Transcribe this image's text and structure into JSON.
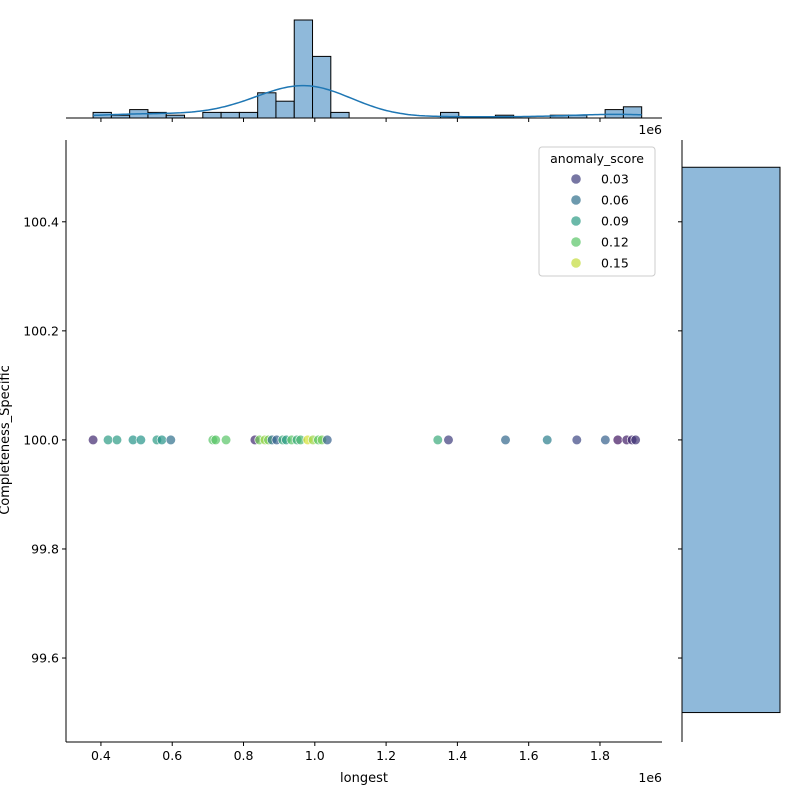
{
  "chart_data": [
    {
      "type": "scatter",
      "xlabel": "longest",
      "ylabel": "Completeness_Specific",
      "x_offset_label": "1e6",
      "xlim": [
        0.302,
        1.974
      ],
      "ylim": [
        99.446,
        100.55
      ],
      "x_ticks": [
        "0.4",
        "0.6",
        "0.8",
        "1.0",
        "1.2",
        "1.4",
        "1.6",
        "1.8"
      ],
      "y_ticks": [
        "99.6",
        "99.8",
        "100.0",
        "100.2",
        "100.4"
      ],
      "x_tick_values": [
        0.4,
        0.6,
        0.8,
        1.0,
        1.2,
        1.4,
        1.6,
        1.8
      ],
      "y_tick_values": [
        99.6,
        99.8,
        100.0,
        100.2,
        100.4
      ],
      "grid": false,
      "hue": "anomaly_score",
      "colormap": "viridis",
      "hue_range": [
        0.0,
        0.165
      ],
      "legend": {
        "title": "anomaly_score",
        "placement": "top-right",
        "entries": [
          "0.03",
          "0.06",
          "0.09",
          "0.12",
          "0.15"
        ],
        "values": [
          0.03,
          0.06,
          0.09,
          0.12,
          0.15
        ]
      },
      "points": [
        {
          "x": 0.378,
          "y": 100.0,
          "score": 0.02
        },
        {
          "x": 0.42,
          "y": 100.0,
          "score": 0.09
        },
        {
          "x": 0.445,
          "y": 100.0,
          "score": 0.09
        },
        {
          "x": 0.49,
          "y": 100.0,
          "score": 0.085
        },
        {
          "x": 0.512,
          "y": 100.0,
          "score": 0.085
        },
        {
          "x": 0.557,
          "y": 100.0,
          "score": 0.09
        },
        {
          "x": 0.571,
          "y": 100.0,
          "score": 0.085
        },
        {
          "x": 0.596,
          "y": 100.0,
          "score": 0.06
        },
        {
          "x": 0.714,
          "y": 100.0,
          "score": 0.12
        },
        {
          "x": 0.722,
          "y": 100.0,
          "score": 0.12
        },
        {
          "x": 0.751,
          "y": 100.0,
          "score": 0.12
        },
        {
          "x": 0.832,
          "y": 100.0,
          "score": 0.02
        },
        {
          "x": 0.845,
          "y": 100.0,
          "score": 0.13
        },
        {
          "x": 0.86,
          "y": 100.0,
          "score": 0.14
        },
        {
          "x": 0.87,
          "y": 100.0,
          "score": 0.13
        },
        {
          "x": 0.88,
          "y": 100.0,
          "score": 0.06
        },
        {
          "x": 0.893,
          "y": 100.0,
          "score": 0.05
        },
        {
          "x": 0.91,
          "y": 100.0,
          "score": 0.1
        },
        {
          "x": 0.92,
          "y": 100.0,
          "score": 0.09
        },
        {
          "x": 0.935,
          "y": 100.0,
          "score": 0.12
        },
        {
          "x": 0.95,
          "y": 100.0,
          "score": 0.1
        },
        {
          "x": 0.96,
          "y": 100.0,
          "score": 0.11
        },
        {
          "x": 0.98,
          "y": 100.0,
          "score": 0.155
        },
        {
          "x": 0.995,
          "y": 100.0,
          "score": 0.14
        },
        {
          "x": 1.01,
          "y": 100.0,
          "score": 0.12
        },
        {
          "x": 1.02,
          "y": 100.0,
          "score": 0.13
        },
        {
          "x": 1.035,
          "y": 100.0,
          "score": 0.05
        },
        {
          "x": 1.345,
          "y": 100.0,
          "score": 0.1
        },
        {
          "x": 1.375,
          "y": 100.0,
          "score": 0.03
        },
        {
          "x": 1.535,
          "y": 100.0,
          "score": 0.055
        },
        {
          "x": 1.652,
          "y": 100.0,
          "score": 0.07
        },
        {
          "x": 1.735,
          "y": 100.0,
          "score": 0.035
        },
        {
          "x": 1.815,
          "y": 100.0,
          "score": 0.05
        },
        {
          "x": 1.85,
          "y": 100.0,
          "score": 0.01
        },
        {
          "x": 1.875,
          "y": 100.0,
          "score": 0.015
        },
        {
          "x": 1.89,
          "y": 100.0,
          "score": 0.02
        },
        {
          "x": 1.9,
          "y": 100.0,
          "score": 0.025
        }
      ]
    },
    {
      "type": "bar",
      "role": "top marginal histogram of longest with KDE",
      "bin_start": 0.378,
      "bin_width": 0.0513,
      "counts": [
        2,
        1,
        3,
        2,
        1,
        0,
        2,
        2,
        2,
        9,
        6,
        35,
        22,
        2,
        0,
        0,
        0,
        0,
        0,
        2,
        0,
        0,
        1,
        0,
        0,
        1,
        1,
        0,
        3,
        4
      ],
      "kde": true,
      "x_offset_label": "1e6",
      "color": "#8fb9da"
    },
    {
      "type": "bar",
      "role": "right marginal histogram of Completeness_Specific",
      "bins": [
        [
          99.5,
          100.5
        ]
      ],
      "counts": [
        101
      ],
      "color": "#8fb9da"
    }
  ]
}
